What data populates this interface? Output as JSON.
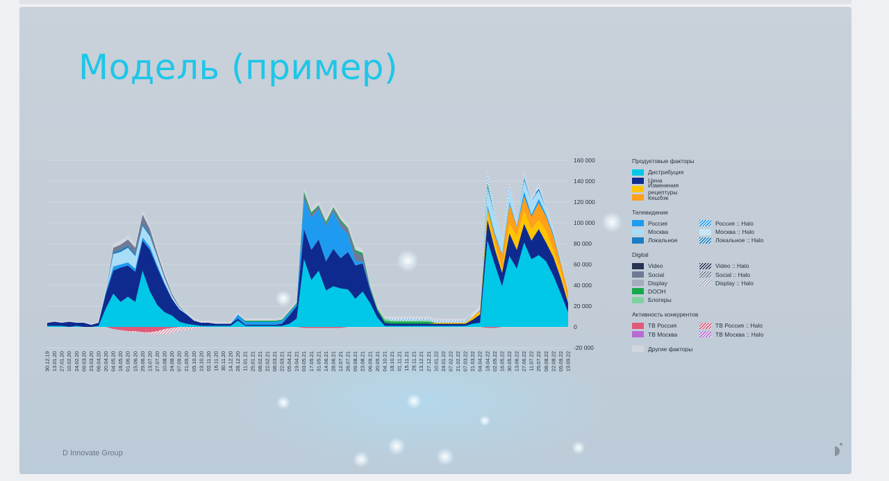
{
  "title": "Модель (пример)",
  "footer": "D Innovate Group",
  "chart_data": {
    "type": "area",
    "stacked": true,
    "x": [
      "30.12.19",
      "13.01.20",
      "27.01.20",
      "10.02.20",
      "24.02.20",
      "09.03.20",
      "23.03.20",
      "06.04.20",
      "20.04.20",
      "04.05.20",
      "18.05.20",
      "01.06.20",
      "15.06.20",
      "29.06.20",
      "13.07.20",
      "27.07.20",
      "10.08.20",
      "24.08.20",
      "07.09.20",
      "21.09.20",
      "05.10.20",
      "19.10.20",
      "02.11.20",
      "16.11.20",
      "30.11.20",
      "14.12.20",
      "28.12.20",
      "11.01.21",
      "25.01.21",
      "08.02.21",
      "22.02.21",
      "08.03.21",
      "22.03.21",
      "05.04.21",
      "19.04.21",
      "03.05.21",
      "17.05.21",
      "31.05.21",
      "14.06.21",
      "28.06.21",
      "12.07.21",
      "26.07.21",
      "09.08.21",
      "23.08.21",
      "06.09.21",
      "20.09.21",
      "04.10.21",
      "18.10.21",
      "01.11.21",
      "15.11.21",
      "29.11.21",
      "13.12.21",
      "27.12.21",
      "10.01.22",
      "24.01.22",
      "07.02.22",
      "21.02.22",
      "07.03.22",
      "21.03.22",
      "04.04.22",
      "18.04.22",
      "02.05.22",
      "16.05.22",
      "30.05.22",
      "13.06.22",
      "27.06.22",
      "11.07.22",
      "25.07.22",
      "08.08.22",
      "22.08.22",
      "05.09.22",
      "19.09.22"
    ],
    "units": "thousands",
    "ylim": [
      -20000,
      160000
    ],
    "yticks": [
      "160 000",
      "140 000",
      "120 000",
      "100 000",
      "80 000",
      "60 000",
      "40 000",
      "20 000",
      "0",
      "-20 000"
    ],
    "ytick_values": [
      160,
      140,
      120,
      100,
      80,
      60,
      40,
      20,
      0,
      -20
    ],
    "grid": true,
    "legend_position": "right",
    "series": [
      {
        "name": "Дистрибуция",
        "color": "#00c8e6",
        "values": [
          1,
          1,
          1,
          0,
          1,
          0,
          0,
          1,
          18,
          32,
          24,
          29,
          24,
          54,
          34,
          21,
          14,
          11,
          5,
          3,
          2,
          1,
          1,
          1,
          1,
          1,
          6,
          1,
          1,
          1,
          1,
          1,
          1,
          3,
          8,
          65,
          45,
          54,
          35,
          39,
          37,
          36,
          27,
          34,
          23,
          9,
          1,
          1,
          1,
          1,
          1,
          1,
          1,
          1,
          1,
          1,
          1,
          1,
          3,
          4,
          83,
          60,
          39,
          68,
          56,
          81,
          65,
          69,
          63,
          49,
          32,
          14
        ]
      },
      {
        "name": "Цена",
        "color": "#0f2a8f",
        "values": [
          3,
          4,
          3,
          5,
          3,
          4,
          2,
          3,
          14,
          22,
          33,
          30,
          29,
          29,
          40,
          36,
          27,
          16,
          12,
          9,
          4,
          3,
          3,
          2,
          2,
          2,
          2,
          1,
          1,
          1,
          1,
          1,
          2,
          8,
          12,
          29,
          29,
          30,
          28,
          36,
          29,
          36,
          32,
          27,
          13,
          7,
          3,
          2,
          2,
          2,
          2,
          2,
          2,
          2,
          2,
          2,
          2,
          2,
          4,
          8,
          20,
          15,
          13,
          22,
          18,
          18,
          18,
          25,
          18,
          18,
          15,
          9
        ]
      },
      {
        "name": "Изменения рецептуры",
        "color": "#ffc400",
        "values": [
          0,
          0,
          0,
          0,
          0,
          0,
          0,
          0,
          0,
          0,
          0,
          0,
          0,
          0,
          0,
          0,
          0,
          0,
          0,
          0,
          0,
          0,
          0,
          0,
          0,
          0,
          0,
          0,
          0,
          0,
          0,
          0,
          0,
          0,
          0,
          0,
          0,
          0,
          0,
          0,
          0,
          0,
          0,
          0,
          0,
          0,
          0,
          0,
          0,
          0,
          0,
          0,
          0,
          1,
          1,
          1,
          1,
          1,
          2,
          3,
          9,
          7,
          4,
          10,
          13,
          13,
          11,
          9,
          11,
          7,
          7,
          4
        ]
      },
      {
        "name": "Кешбэк",
        "color": "#ff9f1a",
        "values": [
          0,
          0,
          0,
          0,
          0,
          0,
          0,
          0,
          0,
          0,
          0,
          0,
          0,
          0,
          0,
          0,
          0,
          0,
          0,
          0,
          0,
          0,
          0,
          0,
          0,
          0,
          0,
          0,
          0,
          0,
          0,
          0,
          0,
          0,
          0,
          0,
          0,
          0,
          0,
          0,
          0,
          0,
          0,
          0,
          0,
          0,
          0,
          0,
          0,
          0,
          0,
          0,
          0,
          0,
          0,
          0,
          0,
          0,
          1,
          1,
          2,
          6,
          13,
          18,
          9,
          13,
          12,
          16,
          14,
          13,
          7,
          7
        ]
      },
      {
        "name": "Россия",
        "color": "#1e9bf0",
        "values": [
          0,
          0,
          0,
          0,
          0,
          0,
          0,
          0,
          2,
          4,
          3,
          3,
          3,
          3,
          3,
          2,
          1,
          0,
          0,
          0,
          0,
          0,
          0,
          0,
          0,
          0,
          4,
          3,
          3,
          3,
          3,
          3,
          3,
          3,
          2,
          29,
          31,
          29,
          34,
          36,
          30,
          17,
          4,
          2,
          1,
          0,
          0,
          0,
          0,
          0,
          0,
          0,
          0,
          0,
          0,
          0,
          0,
          0,
          0,
          0,
          3,
          2,
          1,
          2,
          1,
          5,
          2,
          4,
          2,
          2,
          1,
          0
        ]
      },
      {
        "name": "Москва",
        "color": "#a9dcf7",
        "values": [
          0,
          0,
          0,
          0,
          0,
          0,
          0,
          0,
          0,
          12,
          12,
          14,
          12,
          11,
          10,
          8,
          5,
          3,
          2,
          1,
          0,
          0,
          0,
          0,
          0,
          0,
          0,
          0,
          0,
          0,
          0,
          0,
          0,
          0,
          0,
          0,
          0,
          0,
          0,
          0,
          0,
          0,
          0,
          0,
          0,
          0,
          0,
          0,
          0,
          0,
          0,
          0,
          0,
          0,
          0,
          0,
          0,
          0,
          0,
          0,
          17,
          16,
          13,
          12,
          3,
          11,
          13,
          8,
          6,
          3,
          1,
          0
        ]
      },
      {
        "name": "Локальное",
        "color": "#1a7ec4",
        "values": [
          0,
          0,
          0,
          0,
          0,
          0,
          0,
          0,
          0,
          2,
          2,
          2,
          2,
          2,
          2,
          0,
          0,
          0,
          0,
          0,
          0,
          0,
          0,
          0,
          0,
          0,
          0,
          0,
          0,
          0,
          0,
          0,
          0,
          0,
          0,
          0,
          0,
          0,
          0,
          0,
          0,
          0,
          0,
          0,
          0,
          0,
          0,
          0,
          0,
          0,
          0,
          0,
          0,
          0,
          0,
          0,
          0,
          0,
          0,
          0,
          2,
          0,
          0,
          0,
          0,
          2,
          0,
          2,
          0,
          0,
          0,
          0
        ]
      },
      {
        "name": "Social",
        "color": "#6f7a95",
        "values": [
          0,
          0,
          0,
          0,
          0,
          0,
          0,
          0,
          0,
          4,
          5,
          6,
          6,
          9,
          5,
          4,
          3,
          2,
          1,
          0,
          0,
          0,
          0,
          0,
          0,
          0,
          0,
          0,
          0,
          0,
          0,
          0,
          0,
          0,
          0,
          4,
          3,
          3,
          2,
          3,
          5,
          5,
          9,
          6,
          1,
          0,
          0,
          0,
          0,
          0,
          0,
          0,
          0,
          0,
          0,
          0,
          0,
          0,
          0,
          0,
          0,
          0,
          0,
          0,
          0,
          0,
          0,
          0,
          0,
          0,
          0,
          0
        ]
      },
      {
        "name": "DOOH",
        "color": "#16a84a",
        "values": [
          0,
          0,
          0,
          0,
          0,
          0,
          0,
          0,
          0,
          0,
          0,
          0,
          0,
          0,
          0,
          0,
          0,
          0,
          0,
          0,
          0,
          0,
          0,
          0,
          0,
          0,
          0,
          1,
          1,
          1,
          1,
          1,
          1,
          1,
          1,
          3,
          2,
          1,
          2,
          1,
          2,
          1,
          2,
          2,
          1,
          1,
          2,
          2,
          2,
          2,
          2,
          2,
          2,
          0,
          0,
          0,
          0,
          0,
          0,
          0,
          2,
          0,
          0,
          0,
          0,
          0,
          0,
          0,
          0,
          0,
          0,
          0
        ]
      },
      {
        "name": "Блогеры",
        "color": "#7fd39e",
        "values": [
          0,
          0,
          0,
          0,
          0,
          0,
          0,
          0,
          0,
          0,
          0,
          0,
          0,
          0,
          0,
          0,
          0,
          0,
          0,
          0,
          0,
          0,
          0,
          0,
          0,
          0,
          0,
          0,
          0,
          0,
          0,
          0,
          0,
          0,
          0,
          0,
          0,
          0,
          0,
          0,
          0,
          0,
          0,
          0,
          1,
          2,
          2,
          1,
          1,
          1,
          1,
          1,
          1,
          0,
          0,
          0,
          0,
          0,
          0,
          0,
          0,
          0,
          0,
          0,
          0,
          0,
          0,
          0,
          0,
          0,
          0,
          0
        ]
      },
      {
        "name": "Россия :: Halo",
        "color": "#1e9bf0",
        "pattern": true,
        "values": [
          0,
          0,
          0,
          0,
          0,
          0,
          0,
          0,
          0,
          0,
          0,
          0,
          0,
          0,
          0,
          0,
          0,
          0,
          0,
          0,
          0,
          0,
          0,
          0,
          0,
          0,
          0,
          0,
          0,
          0,
          0,
          0,
          0,
          0,
          0,
          0,
          0,
          0,
          0,
          0,
          0,
          0,
          0,
          0,
          0,
          0,
          0,
          2,
          2,
          2,
          2,
          2,
          2,
          2,
          2,
          2,
          2,
          2,
          2,
          2,
          10,
          3,
          0,
          6,
          0,
          4,
          0,
          3,
          0,
          0,
          0,
          0
        ]
      },
      {
        "name": "Другие факторы",
        "color": "#d3d6de",
        "values": [
          1,
          1,
          1,
          1,
          1,
          1,
          1,
          1,
          4,
          4,
          4,
          4,
          4,
          4,
          4,
          4,
          4,
          2,
          2,
          2,
          2,
          2,
          2,
          2,
          2,
          2,
          2,
          2,
          2,
          2,
          2,
          2,
          2,
          2,
          2,
          4,
          4,
          4,
          4,
          4,
          4,
          4,
          4,
          4,
          2,
          2,
          2,
          2,
          2,
          2,
          2,
          2,
          2,
          2,
          2,
          2,
          2,
          2,
          2,
          2,
          3,
          3,
          3,
          3,
          3,
          3,
          3,
          3,
          3,
          3,
          3,
          3
        ]
      },
      {
        "name": "ТВ Россия",
        "color": "#e05a78",
        "values": [
          0,
          0,
          0,
          0,
          0,
          0,
          0,
          0,
          0,
          -2,
          -3,
          -4,
          -4,
          -5,
          -5,
          -4,
          -2,
          -1,
          0,
          0,
          0,
          0,
          0,
          0,
          0,
          0,
          0,
          0,
          0,
          0,
          0,
          0,
          0,
          0,
          0,
          -1,
          -1,
          -1,
          -1,
          -1,
          -1,
          0,
          0,
          0,
          0,
          0,
          0,
          0,
          0,
          0,
          0,
          0,
          0,
          0,
          0,
          0,
          0,
          0,
          0,
          0,
          -1,
          -1,
          0,
          0,
          0,
          0,
          0,
          0,
          0,
          0,
          0,
          0
        ]
      },
      {
        "name": "ТВ Россия :: Halo",
        "color": "#e05a78",
        "pattern": true,
        "values": [
          0,
          0,
          0,
          0,
          0,
          0,
          0,
          0,
          0,
          0,
          0,
          -1,
          -1,
          -1,
          -2,
          -3,
          -5,
          -5,
          -4,
          -3,
          -2,
          -1,
          0,
          0,
          0,
          0,
          0,
          0,
          0,
          0,
          0,
          0,
          0,
          0,
          0,
          0,
          0,
          0,
          0,
          0,
          0,
          0,
          0,
          0,
          0,
          0,
          0,
          0,
          0,
          0,
          0,
          0,
          0,
          0,
          0,
          0,
          0,
          0,
          0,
          0,
          0,
          0,
          0,
          0,
          0,
          0,
          0,
          0,
          0,
          0,
          0,
          0
        ]
      }
    ]
  },
  "legend": [
    {
      "title": "Продуктовые факторы",
      "left": [
        {
          "label": "Дистрибуция",
          "color": "#00c8e6"
        },
        {
          "label": "Цена",
          "color": "#0f2a8f"
        },
        {
          "label": "Изменения рецептуры",
          "color": "#ffc400"
        },
        {
          "label": "Кешбэк",
          "color": "#ff9f1a"
        }
      ],
      "right": []
    },
    {
      "title": "Телевидение",
      "left": [
        {
          "label": "Россия",
          "color": "#1e9bf0"
        },
        {
          "label": "Москва",
          "color": "#a9dcf7"
        },
        {
          "label": "Локальное",
          "color": "#1a7ec4"
        }
      ],
      "right": [
        {
          "label": "Россия :: Halo",
          "color": "#1e9bf0",
          "pattern": true
        },
        {
          "label": "Москва :: Halo",
          "color": "#a9dcf7",
          "pattern": true
        },
        {
          "label": "Локальное :: Halo",
          "color": "#1a7ec4",
          "pattern": true
        }
      ]
    },
    {
      "title": "Digital",
      "left": [
        {
          "label": "Video",
          "color": "#283253"
        },
        {
          "label": "Social",
          "color": "#6f7a95"
        },
        {
          "label": "Display",
          "color": "#a4abbd"
        },
        {
          "label": "DOOH",
          "color": "#16a84a"
        },
        {
          "label": "Блогеры",
          "color": "#7fd39e"
        }
      ],
      "right": [
        {
          "label": "Video :: Halo",
          "color": "#283253",
          "pattern": true
        },
        {
          "label": "Social :: Halo",
          "color": "#6f7a95",
          "pattern": true
        },
        {
          "label": "Display :: Halo",
          "color": "#a4abbd",
          "pattern": true
        }
      ]
    },
    {
      "title": "Активность конкурентов",
      "left": [
        {
          "label": "ТВ Россия",
          "color": "#e05a78"
        },
        {
          "label": "ТВ Москва",
          "color": "#b86ad4"
        }
      ],
      "right": [
        {
          "label": "ТВ Россия :: Halo",
          "color": "#e05a78",
          "pattern": true
        },
        {
          "label": "ТВ Москва :: Halo",
          "color": "#b86ad4",
          "pattern": true
        }
      ]
    },
    {
      "title": "",
      "left": [
        {
          "label": "Другие факторы",
          "color": "#d3d6de"
        }
      ],
      "right": []
    }
  ]
}
